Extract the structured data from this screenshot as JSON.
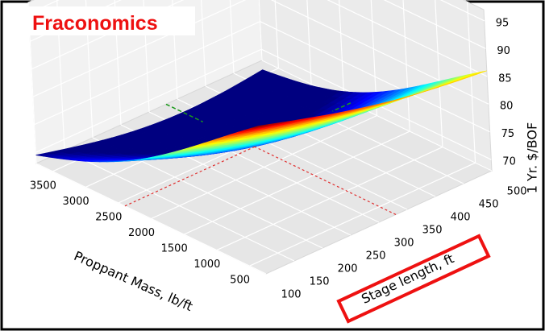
{
  "title": "Fraconomics",
  "chart_data": {
    "type": "surface3d",
    "title": "Fraconomics",
    "xlabel": "Proppant Mass, lb/ft",
    "ylabel": "Stage length, ft",
    "zlabel": "1 Yr. $/BOF",
    "xticks": [
      "500",
      "1000",
      "1500",
      "2000",
      "2500",
      "3000",
      "3500"
    ],
    "yticks": [
      "100",
      "150",
      "200",
      "250",
      "300",
      "350",
      "400",
      "450",
      "500"
    ],
    "zticks": [
      "70",
      "75",
      "80",
      "85",
      "90",
      "95"
    ],
    "xlim": [
      250,
      3750
    ],
    "ylim": [
      100,
      500
    ],
    "zlim": [
      68,
      97
    ],
    "colormap": "jet",
    "surface_corners": [
      {
        "x": 250,
        "y": 500,
        "z": 89
      },
      {
        "x": 250,
        "y": 100,
        "z": 97
      },
      {
        "x": 3750,
        "y": 500,
        "z": 72
      },
      {
        "x": 3750,
        "y": 100,
        "z": 74
      }
    ],
    "minimum": {
      "x": 2400,
      "y": 330,
      "z": 69
    },
    "grid": true,
    "highlight_label": "Stage length, ft",
    "highlight_color": "#ee1111"
  }
}
